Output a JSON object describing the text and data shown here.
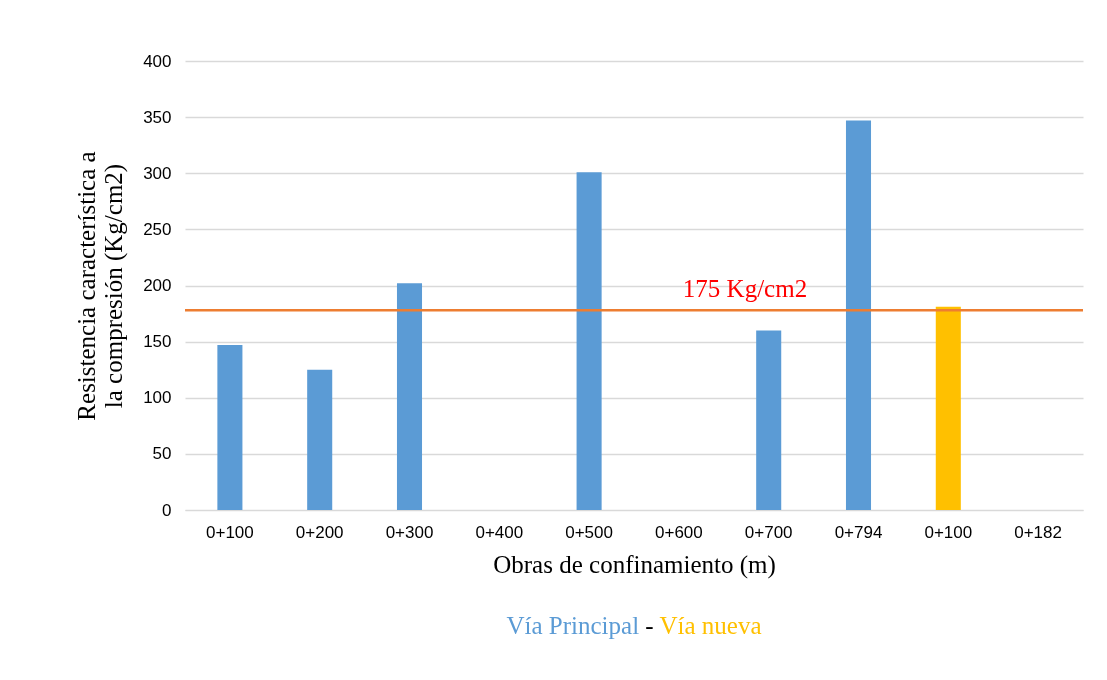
{
  "chart_data": {
    "type": "bar",
    "xlabel": "Obras de confinamiento (m)",
    "ylabel": "Resistencia característica a la compresión (Kg/cm2)",
    "categories": [
      "0+100",
      "0+200",
      "0+300",
      "0+400",
      "0+500",
      "0+600",
      "0+700",
      "0+794",
      "0+100",
      "0+182"
    ],
    "series": [
      {
        "name": "Vía Principal",
        "color": "#5b9bd5",
        "values": [
          147,
          125,
          202,
          null,
          301,
          null,
          160,
          347,
          null,
          null
        ]
      },
      {
        "name": "Vía nueva",
        "color": "#ffc000",
        "values": [
          null,
          null,
          null,
          null,
          null,
          null,
          null,
          null,
          181,
          null
        ]
      }
    ],
    "ylim": [
      0,
      400
    ],
    "yticks": [
      0,
      50,
      100,
      150,
      200,
      250,
      300,
      350,
      400
    ],
    "grid": "y",
    "legend": "bottom",
    "ref_lines": [
      {
        "axis": "y",
        "value": 178,
        "label": "175 Kg/cm2",
        "color": "#ed7d31"
      }
    ],
    "annotations": [
      "-"
    ]
  }
}
